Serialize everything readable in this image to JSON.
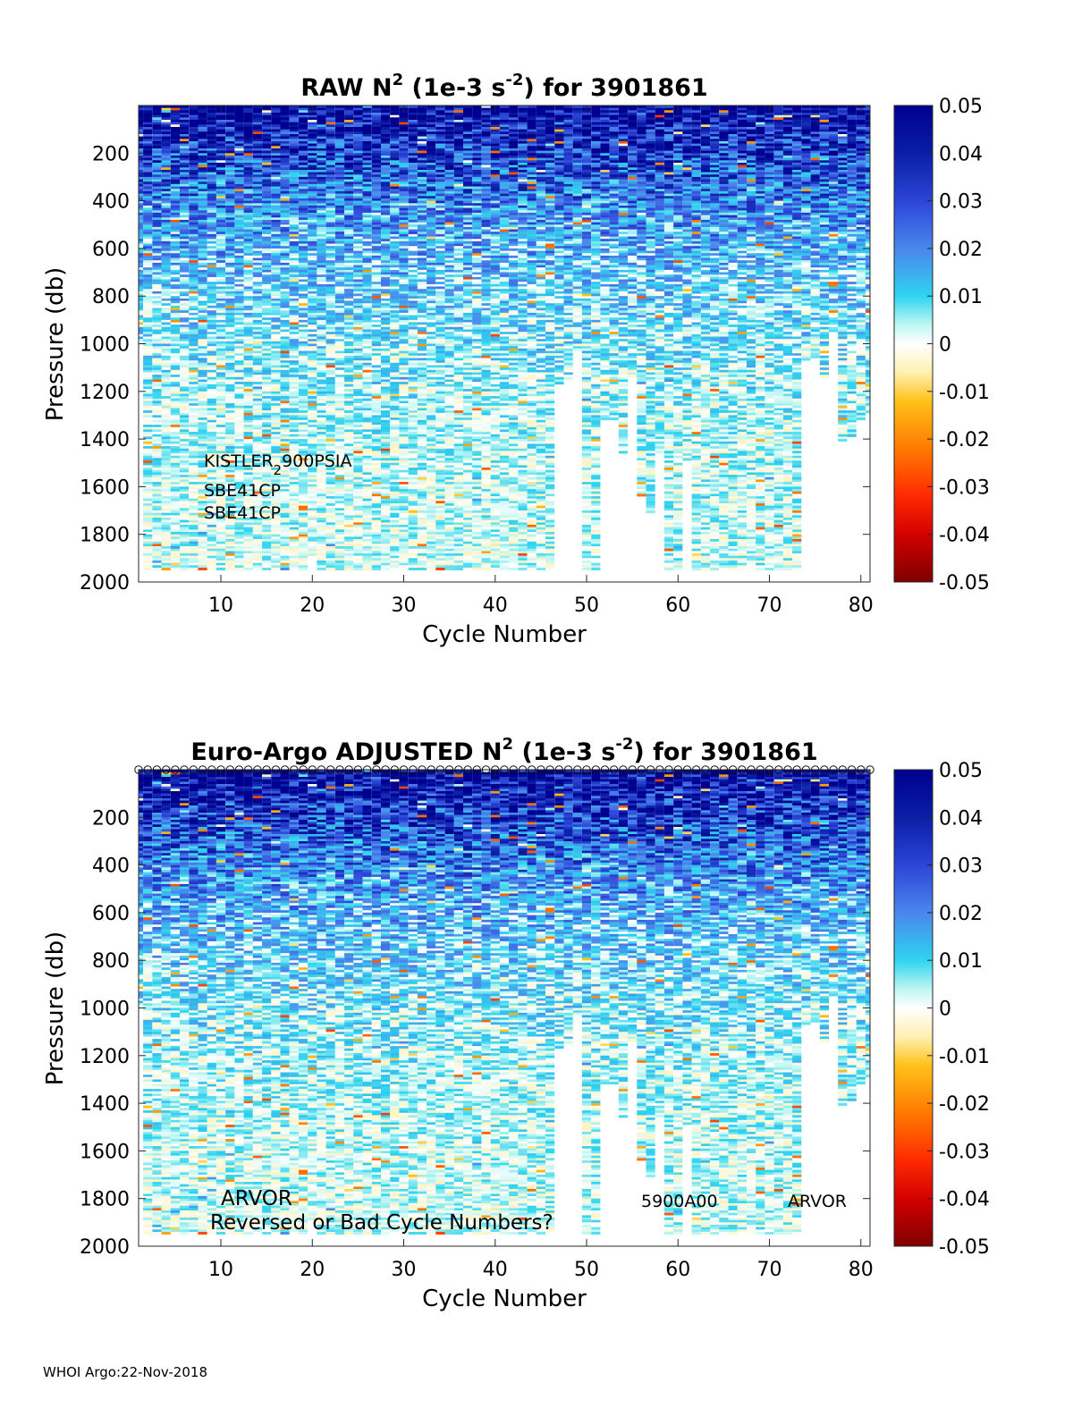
{
  "footer": "WHOI Argo:22-Nov-2018",
  "colorbar": {
    "ticks": [
      "0.05",
      "0.04",
      "0.03",
      "0.02",
      "0.01",
      "0",
      "-0.01",
      "-0.02",
      "-0.03",
      "-0.04",
      "-0.05"
    ],
    "range": [
      -0.05,
      0.05
    ]
  },
  "chart_data": [
    {
      "type": "heatmap",
      "title_pre": "RAW N",
      "title_sup": "2",
      "title_mid": " (1e-3 s",
      "title_sup2": "-2",
      "title_post": ") for 3901861",
      "xlabel": "Cycle Number",
      "ylabel": "Pressure (db)",
      "xlim": [
        1,
        81
      ],
      "ylim": [
        0,
        2000
      ],
      "xticks": [
        "10",
        "20",
        "30",
        "40",
        "50",
        "60",
        "70",
        "80"
      ],
      "yticks": [
        "200",
        "400",
        "600",
        "800",
        "1000",
        "1200",
        "1400",
        "1600",
        "1800",
        "2000"
      ],
      "annotations": [
        "KISTLER",
        "2",
        "900PSIA",
        "SBE41CP",
        "SBE41CP"
      ],
      "profile_max_pressure_db": [
        1000,
        1960,
        1960,
        1960,
        1960,
        1960,
        1960,
        1960,
        1960,
        1960,
        1960,
        1960,
        1960,
        1960,
        1960,
        1960,
        1960,
        1960,
        1960,
        1900,
        1960,
        1960,
        1960,
        1960,
        1960,
        1960,
        1960,
        1960,
        1960,
        1960,
        1960,
        1960,
        1960,
        1960,
        1960,
        1960,
        1960,
        1960,
        1960,
        1960,
        1960,
        1960,
        1960,
        1960,
        1960,
        1960,
        1180,
        1160,
        1040,
        1960,
        1960,
        1330,
        1330,
        1470,
        1150,
        1650,
        1720,
        1490,
        1960,
        1960,
        1500,
        1960,
        1960,
        1960,
        1960,
        1960,
        1960,
        1960,
        1960,
        1960,
        1960,
        1960,
        1960,
        1080,
        1070,
        1150,
        960,
        1430,
        1400,
        1330,
        1300
      ]
    },
    {
      "type": "heatmap",
      "title_pre": "Euro-Argo  ADJUSTED N",
      "title_sup": "2",
      "title_mid": " (1e-3 s",
      "title_sup2": "-2",
      "title_post": ") for 3901861",
      "xlabel": "Cycle Number",
      "ylabel": "Pressure (db)",
      "xlim": [
        1,
        81
      ],
      "ylim": [
        0,
        2000
      ],
      "xticks": [
        "10",
        "20",
        "30",
        "40",
        "50",
        "60",
        "70",
        "80"
      ],
      "yticks": [
        "200",
        "400",
        "600",
        "800",
        "1000",
        "1200",
        "1400",
        "1600",
        "1800",
        "2000"
      ],
      "annotations": [
        "ARVOR",
        "Reversed or Bad Cycle Numbers?",
        "5900A00",
        "ARVOR"
      ],
      "profile_max_pressure_db": [
        1000,
        1960,
        1960,
        1960,
        1960,
        1960,
        1960,
        1960,
        1960,
        1960,
        1960,
        1960,
        1960,
        1960,
        1960,
        1960,
        1960,
        1960,
        1960,
        1900,
        1960,
        1960,
        1960,
        1960,
        1960,
        1960,
        1960,
        1960,
        1960,
        1960,
        1960,
        1960,
        1960,
        1960,
        1960,
        1960,
        1960,
        1960,
        1960,
        1960,
        1960,
        1960,
        1960,
        1960,
        1960,
        1960,
        1180,
        1160,
        1040,
        1960,
        1960,
        1330,
        1330,
        1470,
        1150,
        1650,
        1720,
        1490,
        1960,
        1960,
        1500,
        1960,
        1960,
        1960,
        1960,
        1960,
        1960,
        1960,
        1960,
        1960,
        1960,
        1960,
        1960,
        1080,
        1070,
        1150,
        960,
        1430,
        1400,
        1330,
        1300
      ]
    }
  ]
}
